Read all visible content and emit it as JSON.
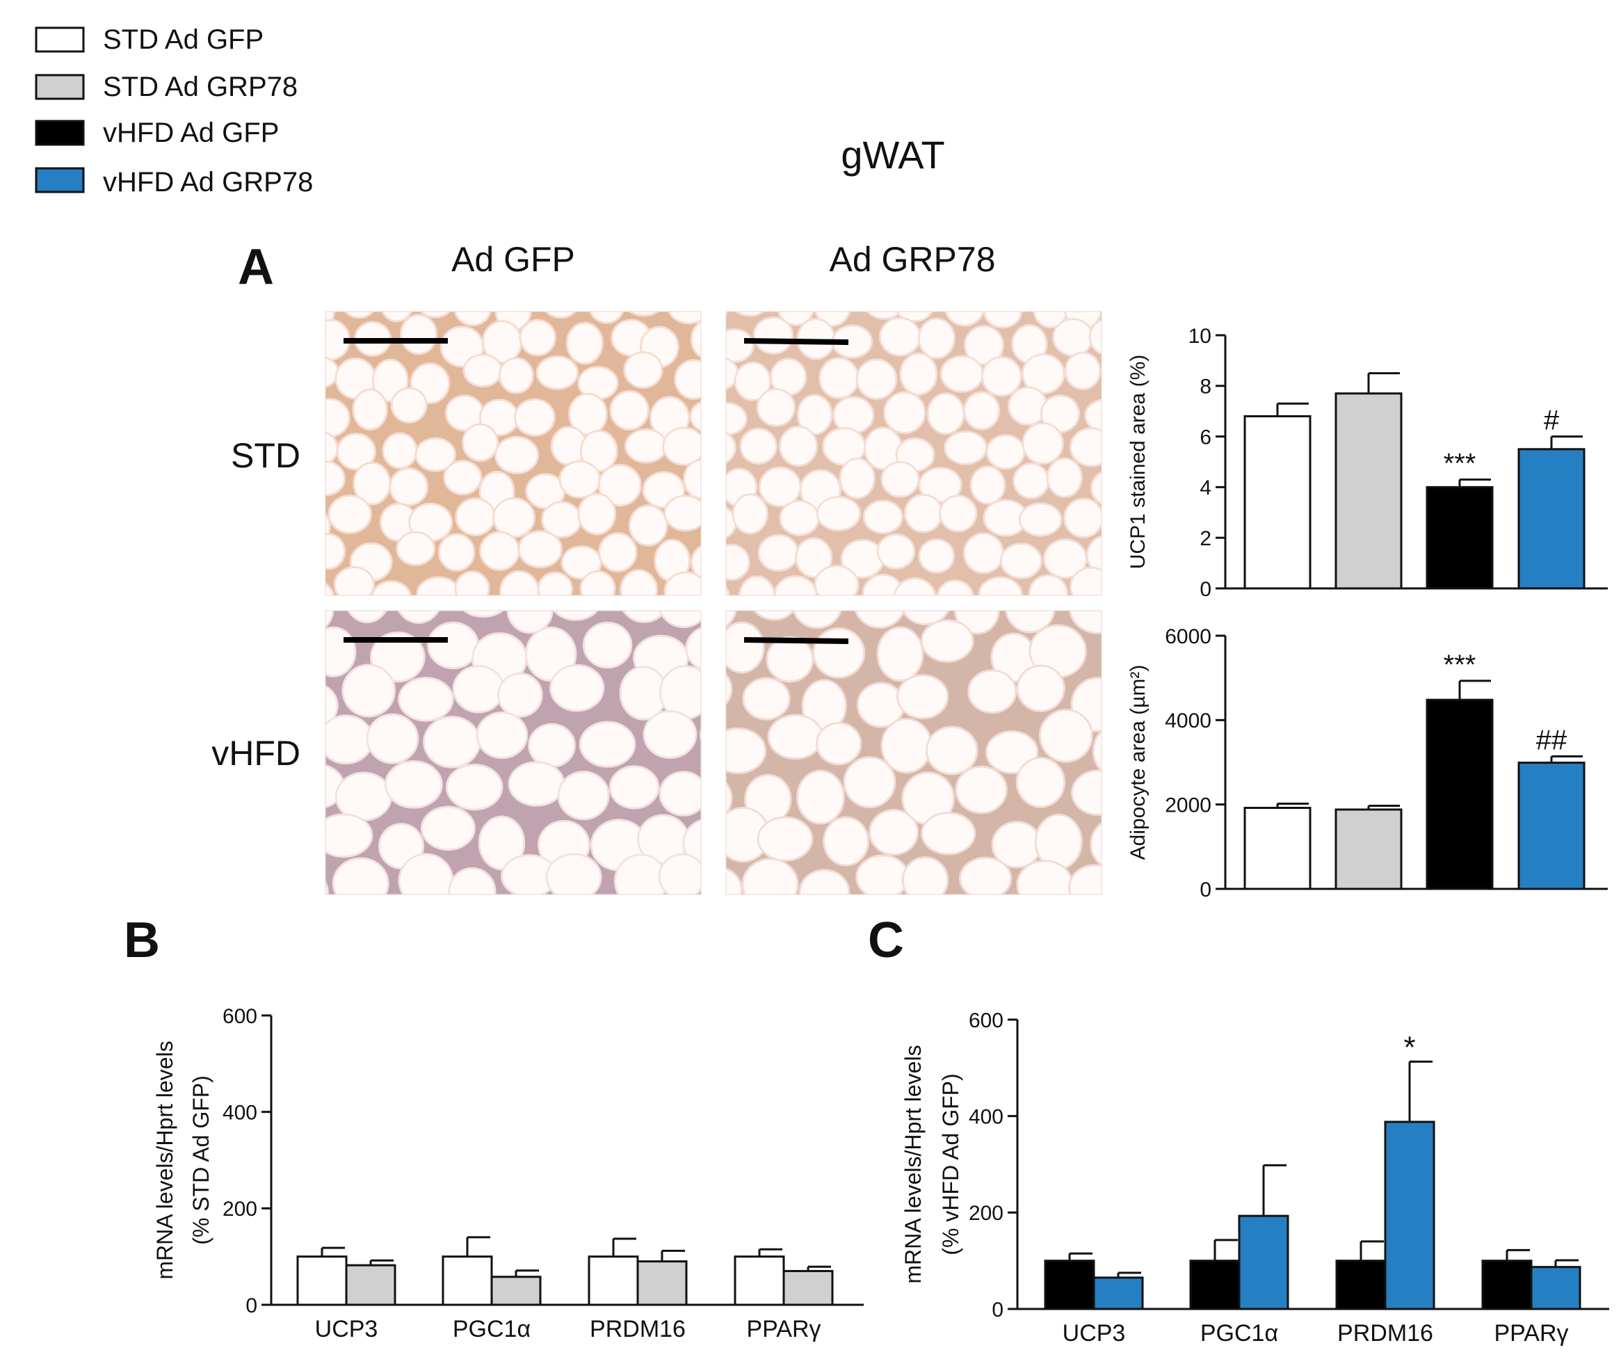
{
  "figure": {
    "title": "gWAT",
    "panels": [
      "A",
      "B",
      "C"
    ],
    "col_labels": [
      "Ad GFP",
      "Ad GRP78"
    ],
    "row_labels": [
      "STD",
      "vHFD"
    ]
  },
  "legend": [
    {
      "label": "STD Ad GFP",
      "color": "#ffffff"
    },
    {
      "label": "STD Ad GRP78",
      "color": "#d0d0d0"
    },
    {
      "label": "vHFD Ad GFP",
      "color": "#000000"
    },
    {
      "label": "vHFD Ad GRP78",
      "color": "#2580c3"
    }
  ],
  "chart_data": [
    {
      "id": "ucp1",
      "type": "bar",
      "ylabel": "UCP1 stained area (%)",
      "ylim": [
        0,
        10
      ],
      "yticks": [
        0,
        2,
        4,
        6,
        8,
        10
      ],
      "groups": [
        "STD Ad GFP",
        "STD Ad GRP78",
        "vHFD Ad GFP",
        "vHFD Ad GRP78"
      ],
      "values": [
        6.8,
        7.7,
        4.0,
        5.5
      ],
      "errors": [
        0.5,
        0.8,
        0.3,
        0.5
      ],
      "annotations": [
        "",
        "",
        "***",
        "#"
      ]
    },
    {
      "id": "adipocyte",
      "type": "bar",
      "ylabel": "Adipocyte area (µm²)",
      "ylim": [
        0,
        6000
      ],
      "yticks": [
        0,
        2000,
        4000,
        6000
      ],
      "groups": [
        "STD Ad GFP",
        "STD Ad GRP78",
        "vHFD Ad GFP",
        "vHFD Ad GRP78"
      ],
      "values": [
        1920,
        1880,
        4480,
        2990
      ],
      "errors": [
        100,
        90,
        450,
        150
      ],
      "annotations": [
        "",
        "",
        "***",
        "##"
      ]
    },
    {
      "id": "B",
      "type": "bar",
      "ylabel_lines": [
        "mRNA levels/Hprt levels",
        "(% STD Ad GFP)"
      ],
      "ylim": [
        0,
        600
      ],
      "yticks": [
        0,
        200,
        400,
        600
      ],
      "categories": [
        "UCP3",
        "PGC1α",
        "PRDM16",
        "PPARγ"
      ],
      "series": [
        {
          "name": "STD Ad GFP",
          "values": [
            100,
            100,
            100,
            100
          ],
          "errors": [
            18,
            40,
            37,
            15
          ]
        },
        {
          "name": "STD Ad GRP78",
          "values": [
            82,
            58,
            90,
            70
          ],
          "errors": [
            10,
            13,
            22,
            9
          ]
        }
      ],
      "annotations": [
        [
          "",
          ""
        ],
        [
          "",
          ""
        ],
        [
          "",
          ""
        ],
        [
          "",
          ""
        ]
      ]
    },
    {
      "id": "C",
      "type": "bar",
      "ylabel_lines": [
        "mRNA levels/Hprt levels",
        "(% vHFD Ad GFP)"
      ],
      "ylim": [
        0,
        600
      ],
      "yticks": [
        0,
        200,
        400,
        600
      ],
      "categories": [
        "UCP3",
        "PGC1α",
        "PRDM16",
        "PPARγ"
      ],
      "series": [
        {
          "name": "vHFD Ad GFP",
          "values": [
            100,
            100,
            100,
            100
          ],
          "errors": [
            15,
            43,
            40,
            22
          ]
        },
        {
          "name": "vHFD Ad GRP78",
          "values": [
            65,
            193,
            388,
            87
          ],
          "errors": [
            10,
            105,
            125,
            14
          ]
        }
      ],
      "annotations": [
        [
          "",
          ""
        ],
        [
          "",
          ""
        ],
        [
          "",
          "*"
        ],
        [
          "",
          ""
        ]
      ]
    }
  ],
  "micrographs": [
    {
      "id": "std-gfp",
      "base": "#f6dcd2",
      "stain": "#c97c45"
    },
    {
      "id": "std-grp78",
      "base": "#f4ded6",
      "stain": "#c98a66"
    },
    {
      "id": "vhfd-gfp",
      "base": "#f3e1e3",
      "stain": "#8a5a70"
    },
    {
      "id": "vhfd-grp78",
      "base": "#f2dcd6",
      "stain": "#b07a60"
    }
  ]
}
